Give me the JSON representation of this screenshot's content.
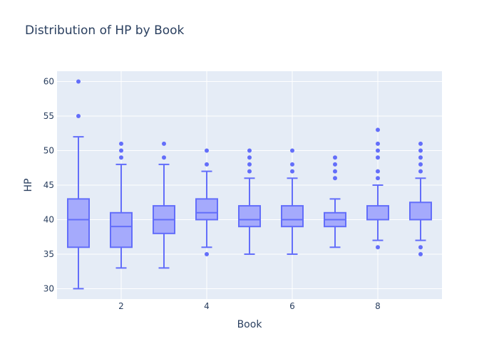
{
  "chart_data": {
    "type": "box",
    "title": "Distribution of HP by Book",
    "xlabel": "Book",
    "ylabel": "HP",
    "xlim": [
      0.5,
      9.5
    ],
    "ylim": [
      28.5,
      61.5
    ],
    "x_ticks": [
      2,
      4,
      6,
      8
    ],
    "y_ticks": [
      30,
      35,
      40,
      45,
      50,
      55,
      60
    ],
    "grid": true,
    "colors": {
      "box_line": "#636efa",
      "box_fill": "#a5aafc",
      "plot_bg": "#e5ecf6",
      "grid": "#ffffff",
      "text": "#2a3f5f"
    },
    "boxes": [
      {
        "book": 1,
        "min": 30,
        "q1": 36,
        "median": 40,
        "q3": 43,
        "max": 52,
        "outliers": [
          55,
          60
        ]
      },
      {
        "book": 2,
        "min": 33,
        "q1": 36,
        "median": 39,
        "q3": 41,
        "max": 48,
        "outliers": [
          49,
          50,
          51
        ]
      },
      {
        "book": 3,
        "min": 33,
        "q1": 38,
        "median": 40,
        "q3": 42,
        "max": 48,
        "outliers": [
          49,
          51
        ]
      },
      {
        "book": 4,
        "min": 36,
        "q1": 40,
        "median": 41,
        "q3": 43,
        "max": 47,
        "outliers": [
          35,
          48,
          50
        ]
      },
      {
        "book": 5,
        "min": 35,
        "q1": 39,
        "median": 40,
        "q3": 42,
        "max": 46,
        "outliers": [
          47,
          48,
          49,
          50
        ]
      },
      {
        "book": 6,
        "min": 35,
        "q1": 39,
        "median": 40,
        "q3": 42,
        "max": 46,
        "outliers": [
          47,
          48,
          50
        ]
      },
      {
        "book": 7,
        "min": 36,
        "q1": 39,
        "median": 40,
        "q3": 41,
        "max": 43,
        "outliers": [
          46,
          47,
          48,
          49
        ]
      },
      {
        "book": 8,
        "min": 37,
        "q1": 40,
        "median": 40,
        "q3": 42,
        "max": 45,
        "outliers": [
          36,
          46,
          47,
          49,
          50,
          51,
          53
        ]
      },
      {
        "book": 9,
        "min": 37,
        "q1": 40,
        "median": 40,
        "q3": 42.5,
        "max": 46,
        "outliers": [
          35,
          36,
          47,
          48,
          49,
          50,
          51
        ]
      }
    ]
  }
}
